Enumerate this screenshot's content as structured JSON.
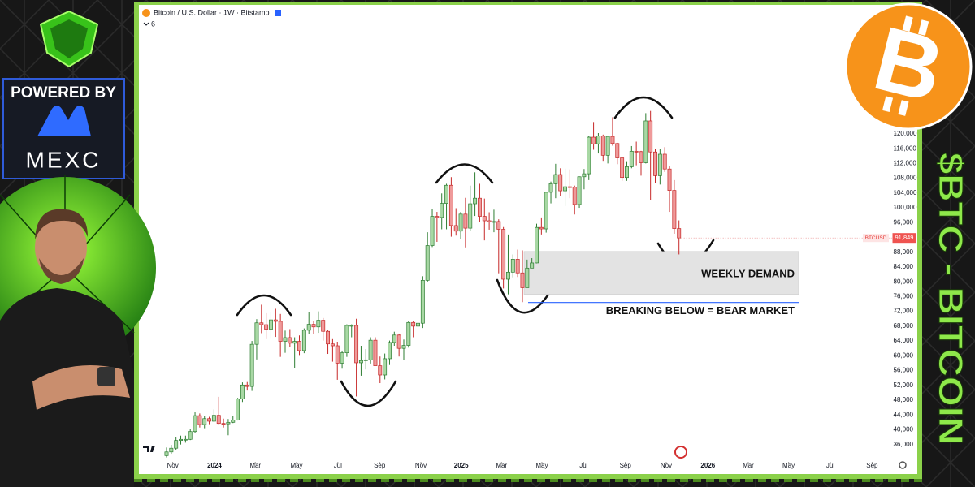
{
  "branding": {
    "powered_by": "POWERED BY",
    "sponsor": "MEXC",
    "headline": "$BTC - BITCOIN"
  },
  "chart_data": {
    "type": "candlestick",
    "title": "Bitcoin / U.S. Dollar · 1W · Bitstamp",
    "indicators": 6,
    "symbol": "BTCUSD",
    "last_price": {
      "value": 91849,
      "label": "91,849"
    },
    "grid": false,
    "up_color": "#a8d8a4",
    "down_color": "#ef9a9a",
    "up_edge": "#2e7d32",
    "down_edge": "#c62828",
    "xlim": [
      -5,
      153
    ],
    "xticks": [
      {
        "value": 1.3,
        "label": "Nov"
      },
      {
        "value": 10.1,
        "label": "2024"
      },
      {
        "value": 18.7,
        "label": "Mar"
      },
      {
        "value": 27.4,
        "label": "May"
      },
      {
        "value": 36.1,
        "label": "Jul"
      },
      {
        "value": 44.9,
        "label": "Sep"
      },
      {
        "value": 53.6,
        "label": "Nov"
      },
      {
        "value": 62.1,
        "label": "2025"
      },
      {
        "value": 70.6,
        "label": "Mar"
      },
      {
        "value": 79.1,
        "label": "May"
      },
      {
        "value": 87.9,
        "label": "Jul"
      },
      {
        "value": 96.7,
        "label": "Sep"
      },
      {
        "value": 105.3,
        "label": "Nov"
      },
      {
        "value": 114.1,
        "label": "2026"
      },
      {
        "value": 122.6,
        "label": "Mar"
      },
      {
        "value": 131.1,
        "label": "May"
      },
      {
        "value": 139.9,
        "label": "Jul"
      },
      {
        "value": 148.7,
        "label": "Sep"
      }
    ],
    "ylim": [
      30000,
      154000
    ],
    "yticks": [
      {
        "value": 36000,
        "label": "36,000"
      },
      {
        "value": 40000,
        "label": "40,000"
      },
      {
        "value": 44000,
        "label": "44,000"
      },
      {
        "value": 48000,
        "label": "48,000"
      },
      {
        "value": 52000,
        "label": "52,000"
      },
      {
        "value": 56000,
        "label": "56,000"
      },
      {
        "value": 60000,
        "label": "60,000"
      },
      {
        "value": 64000,
        "label": "64,000"
      },
      {
        "value": 68000,
        "label": "68,000"
      },
      {
        "value": 72000,
        "label": "72,000"
      },
      {
        "value": 76000,
        "label": "76,000"
      },
      {
        "value": 80000,
        "label": "80,000"
      },
      {
        "value": 84000,
        "label": "84,000"
      },
      {
        "value": 88000,
        "label": "88,000"
      },
      {
        "value": 92000,
        "label": "92,000"
      },
      {
        "value": 96000,
        "label": "96,000"
      },
      {
        "value": 100000,
        "label": "100,000"
      },
      {
        "value": 104000,
        "label": "104,000"
      },
      {
        "value": 108000,
        "label": "108,000"
      },
      {
        "value": 112000,
        "label": "112,000"
      },
      {
        "value": 116000,
        "label": "116,000"
      },
      {
        "value": 120000,
        "label": "120,000"
      }
    ],
    "open": [
      33000,
      34000,
      35000,
      37100,
      37400,
      37400,
      39500,
      43800,
      41400,
      43000,
      42300,
      43900,
      41700,
      41600,
      42000,
      42600,
      48300,
      52100,
      51700,
      63100,
      68900,
      68400,
      67200,
      69700,
      69300,
      63900,
      64900,
      63400,
      63900,
      61400,
      66900,
      68500,
      67800,
      69600,
      66600,
      63200,
      62700,
      58000,
      60800,
      68200,
      68200,
      58100,
      58700,
      58900,
      64200,
      57300,
      54800,
      59200,
      63600,
      65600,
      62000,
      62800,
      69000,
      68000,
      68800,
      80400,
      89800,
      97700,
      97400,
      101200,
      106100,
      95200,
      93700,
      98300,
      94500,
      101100,
      102600,
      97700,
      96500,
      96200,
      96300,
      94200,
      80700,
      82600,
      86100,
      82400,
      78400,
      83700,
      85100,
      94700,
      94300,
      104200,
      106500,
      109000,
      104600,
      105700,
      105600,
      100900,
      108400,
      109200,
      119100,
      117300,
      119400,
      114200,
      119300,
      117400,
      113500,
      108200,
      111100,
      115300,
      115200,
      112200,
      123500,
      115100,
      108700,
      114500,
      110500,
      104700,
      94400
    ],
    "high": [
      35200,
      35900,
      37900,
      38400,
      38400,
      40200,
      44700,
      44400,
      43800,
      43500,
      45500,
      48900,
      43000,
      42900,
      43800,
      48600,
      52800,
      52900,
      64000,
      69900,
      73800,
      71500,
      71700,
      72700,
      71300,
      66800,
      67200,
      65000,
      65500,
      67400,
      71900,
      69500,
      72000,
      70200,
      67000,
      64500,
      63800,
      61400,
      68500,
      68500,
      70000,
      62700,
      61800,
      65000,
      65000,
      59800,
      60600,
      64100,
      66500,
      66000,
      64400,
      69400,
      69500,
      73600,
      81500,
      93400,
      99600,
      98900,
      103900,
      106500,
      108300,
      99900,
      98900,
      102700,
      106000,
      109600,
      106500,
      102500,
      98800,
      99500,
      96900,
      94800,
      92800,
      87400,
      88700,
      88500,
      86000,
      86400,
      95700,
      97400,
      104300,
      107100,
      111900,
      110700,
      110600,
      110400,
      106000,
      108500,
      110500,
      119500,
      123200,
      120200,
      119800,
      119500,
      124500,
      117600,
      113700,
      112600,
      116700,
      117900,
      115400,
      125600,
      126200,
      115900,
      115900,
      116400,
      111200,
      107500,
      96600
    ],
    "low": [
      32500,
      33500,
      34600,
      36000,
      36500,
      37200,
      39200,
      40600,
      40400,
      41500,
      42100,
      41500,
      40600,
      38500,
      41800,
      42500,
      47500,
      50600,
      50500,
      59000,
      66100,
      64500,
      64600,
      65100,
      59700,
      60800,
      62400,
      56600,
      60200,
      60700,
      65800,
      66000,
      66200,
      64100,
      60500,
      58400,
      53500,
      56500,
      59700,
      65000,
      49000,
      54600,
      56300,
      57900,
      57300,
      52600,
      53600,
      57500,
      62700,
      59800,
      58900,
      62200,
      65000,
      66800,
      67500,
      80000,
      89400,
      90800,
      94200,
      94200,
      92200,
      92500,
      91500,
      89300,
      93700,
      97800,
      96200,
      91200,
      94100,
      93400,
      82300,
      78200,
      76600,
      81200,
      81300,
      74500,
      78900,
      83800,
      85000,
      92800,
      93300,
      101200,
      102600,
      103200,
      100500,
      102600,
      98200,
      100000,
      105000,
      107500,
      115700,
      114700,
      112700,
      112000,
      116800,
      111800,
      107300,
      107300,
      110700,
      111500,
      108700,
      112000,
      102000,
      106700,
      106300,
      109700,
      98900,
      93000,
      87400
    ],
    "close": [
      34000,
      35000,
      37100,
      37400,
      37400,
      39500,
      43800,
      41400,
      43000,
      42300,
      43900,
      41700,
      41600,
      42000,
      42600,
      48300,
      52100,
      51700,
      63100,
      68900,
      68400,
      67200,
      69700,
      69300,
      63900,
      64900,
      63400,
      63900,
      61400,
      66900,
      68500,
      67800,
      69600,
      66600,
      63200,
      62700,
      58000,
      60800,
      68200,
      68200,
      58100,
      58700,
      58900,
      64200,
      57300,
      54800,
      59200,
      63600,
      65600,
      62000,
      62800,
      69000,
      68000,
      68800,
      80400,
      89800,
      97700,
      97400,
      101200,
      106100,
      95200,
      93700,
      98300,
      94500,
      101100,
      102600,
      97700,
      96500,
      96200,
      96300,
      94200,
      80700,
      82600,
      86100,
      82400,
      78400,
      83700,
      85100,
      94700,
      94300,
      104200,
      106500,
      109000,
      104600,
      105700,
      105600,
      100900,
      108400,
      109200,
      119100,
      117300,
      119400,
      114200,
      119300,
      117400,
      113500,
      108200,
      111100,
      115300,
      115200,
      112200,
      123500,
      115100,
      108700,
      114500,
      110500,
      104700,
      94400,
      91849
    ],
    "demand_zone": [
      76600,
      88200
    ],
    "zone_color": "#e3e3e3",
    "bear_line": 74400,
    "bear_line_color": "#2962ff",
    "annotations": [
      {
        "text": "WEEKLY DEMAND"
      },
      {
        "text": "BREAKING BELOW = BEAR MARKET"
      }
    ]
  }
}
